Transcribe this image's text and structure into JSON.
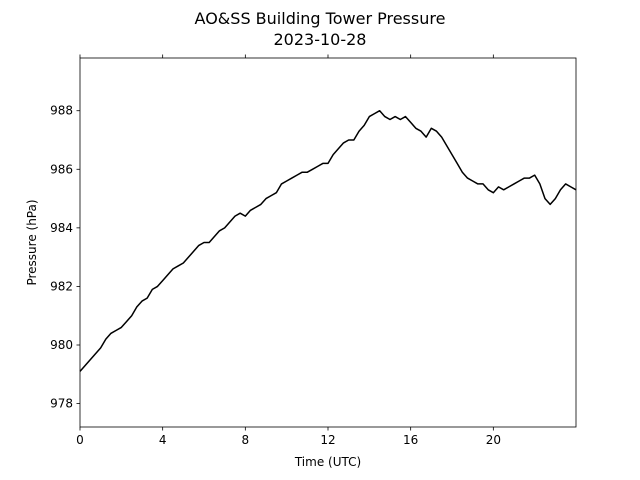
{
  "chart_data": {
    "type": "line",
    "title": "AO&SS Building Tower Pressure",
    "subtitle": "2023-10-28",
    "xlabel": "Time (UTC)",
    "ylabel": "Pressure (hPa)",
    "xlim": [
      0,
      24
    ],
    "ylim": [
      977.2,
      989.8
    ],
    "xticks": [
      0,
      4,
      8,
      12,
      16,
      20
    ],
    "yticks": [
      978,
      980,
      982,
      984,
      986,
      988
    ],
    "grid": false,
    "line_color": "#000000",
    "series": [
      {
        "x": [
          0,
          0.25,
          0.5,
          0.75,
          1.0,
          1.25,
          1.5,
          1.75,
          2.0,
          2.25,
          2.5,
          2.75,
          3.0,
          3.25,
          3.5,
          3.75,
          4.0,
          4.25,
          4.5,
          4.75,
          5.0,
          5.25,
          5.5,
          5.75,
          6.0,
          6.25,
          6.5,
          6.75,
          7.0,
          7.25,
          7.5,
          7.75,
          8.0,
          8.25,
          8.5,
          8.75,
          9.0,
          9.25,
          9.5,
          9.75,
          10.0,
          10.25,
          10.5,
          10.75,
          11.0,
          11.25,
          11.5,
          11.75,
          12.0,
          12.25,
          12.5,
          12.75,
          13.0,
          13.25,
          13.5,
          13.75,
          14.0,
          14.25,
          14.5,
          14.75,
          15.0,
          15.25,
          15.5,
          15.75,
          16.0,
          16.25,
          16.5,
          16.75,
          17.0,
          17.25,
          17.5,
          17.75,
          18.0,
          18.25,
          18.5,
          18.75,
          19.0,
          19.25,
          19.5,
          19.75,
          20.0,
          20.25,
          20.5,
          20.75,
          21.0,
          21.25,
          21.5,
          21.75,
          22.0,
          22.25,
          22.5,
          22.75,
          23.0,
          23.25,
          23.5,
          23.75,
          24.0
        ],
        "values": [
          979.1,
          979.3,
          979.5,
          979.7,
          979.9,
          980.2,
          980.4,
          980.5,
          980.6,
          980.8,
          981.0,
          981.3,
          981.5,
          981.6,
          981.9,
          982.0,
          982.2,
          982.4,
          982.6,
          982.7,
          982.8,
          983.0,
          983.2,
          983.4,
          983.5,
          983.5,
          983.7,
          983.9,
          984.0,
          984.2,
          984.4,
          984.5,
          984.4,
          984.6,
          984.7,
          984.8,
          985.0,
          985.1,
          985.2,
          985.5,
          985.6,
          985.7,
          985.8,
          985.9,
          985.9,
          986.0,
          986.1,
          986.2,
          986.2,
          986.5,
          986.7,
          986.9,
          987.0,
          987.0,
          987.3,
          987.5,
          987.8,
          987.9,
          988.0,
          987.8,
          987.7,
          987.8,
          987.7,
          987.8,
          987.6,
          987.4,
          987.3,
          987.1,
          987.4,
          987.3,
          987.1,
          986.8,
          986.5,
          986.2,
          985.9,
          985.7,
          985.6,
          985.5,
          985.5,
          985.3,
          985.2,
          985.4,
          985.3,
          985.4,
          985.5,
          985.6,
          985.7,
          985.7,
          985.8,
          985.5,
          985.0,
          984.8,
          985.0,
          985.3,
          985.5,
          985.4,
          985.3
        ]
      }
    ]
  }
}
